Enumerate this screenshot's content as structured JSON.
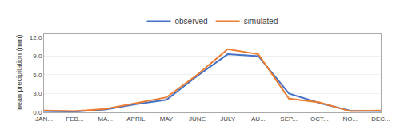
{
  "chart_data": {
    "type": "line",
    "categories": [
      "JAN...",
      "FEB...",
      "MA...",
      "APRIL",
      "MAY",
      "JUNE",
      "JULY",
      "AU...",
      "SEP...",
      "OCT...",
      "NO...",
      "DEC..."
    ],
    "series": [
      {
        "name": "observed",
        "color": "#4472C4",
        "values": [
          0.18,
          0.12,
          0.45,
          1.3,
          2.0,
          5.8,
          9.3,
          9.0,
          3.0,
          1.5,
          0.25,
          0.18
        ]
      },
      {
        "name": "simulated",
        "color": "#ED7D31",
        "values": [
          0.28,
          0.18,
          0.55,
          1.45,
          2.4,
          6.0,
          10.1,
          9.3,
          2.2,
          1.6,
          0.18,
          0.28
        ]
      }
    ],
    "y_label": "mean precipitation (mm)",
    "ylim": [
      0,
      12.5
    ],
    "yticks": [
      {
        "value": 0.0,
        "label": "0.0"
      },
      {
        "value": 3.0,
        "label": "3.0"
      },
      {
        "value": 6.0,
        "label": "6.0"
      },
      {
        "value": 9.0,
        "label": "9.0"
      },
      {
        "value": 12.0,
        "label": "12.0"
      }
    ],
    "grid": true,
    "legend": "top"
  }
}
